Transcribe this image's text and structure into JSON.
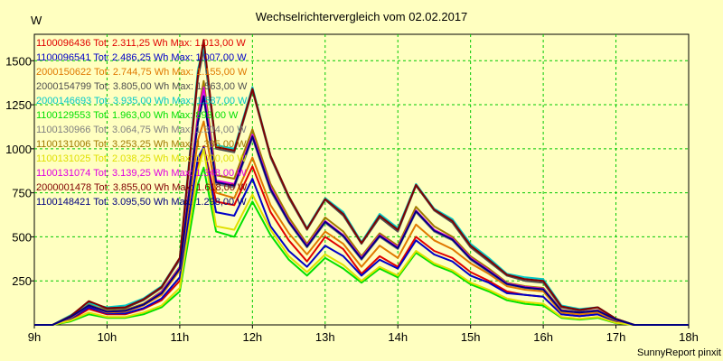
{
  "chart_data": {
    "type": "line",
    "title": "Wechselrichtervergleich vom 02.02.2017",
    "ylabel": "W",
    "footer": "SunnyReport pinxit",
    "x_ticks": [
      "9h",
      "10h",
      "11h",
      "12h",
      "13h",
      "14h",
      "15h",
      "16h",
      "17h",
      "18h"
    ],
    "xlim": [
      9,
      18
    ],
    "y_ticks": [
      "250",
      "500",
      "750",
      "1000",
      "1250",
      "1500"
    ],
    "ylim": [
      0,
      1650
    ],
    "grid": true,
    "legend_position": "top-left",
    "x": [
      9.0,
      9.25,
      9.5,
      9.75,
      10.0,
      10.25,
      10.5,
      10.75,
      11.0,
      11.25,
      11.33,
      11.5,
      11.75,
      12.0,
      12.25,
      12.5,
      12.75,
      13.0,
      13.25,
      13.5,
      13.75,
      14.0,
      14.25,
      14.5,
      14.75,
      15.0,
      15.25,
      15.5,
      15.75,
      16.0,
      16.25,
      16.5,
      16.75,
      17.0,
      17.25,
      17.5,
      17.75,
      18.0
    ],
    "series": [
      {
        "name": "1100096436",
        "legend": "1100096436 Tot: 2.311,25 Wh Max: 1.013,00 W",
        "color": "#E00000",
        "values": [
          0,
          0,
          30,
          90,
          60,
          60,
          90,
          140,
          250,
          900,
          1013,
          700,
          680,
          900,
          640,
          480,
          360,
          500,
          430,
          290,
          390,
          330,
          500,
          420,
          380,
          300,
          250,
          190,
          170,
          160,
          60,
          50,
          60,
          20,
          0,
          0,
          0,
          0
        ]
      },
      {
        "name": "1100096541",
        "legend": "1100096541 Tot: 2.486,25 Wh Max: 1.007,00 W",
        "color": "#0000C8",
        "values": [
          0,
          0,
          35,
          100,
          65,
          65,
          95,
          150,
          270,
          950,
          1007,
          640,
          620,
          830,
          560,
          420,
          330,
          450,
          390,
          280,
          370,
          320,
          480,
          400,
          360,
          280,
          240,
          180,
          170,
          160,
          60,
          50,
          60,
          20,
          0,
          0,
          0,
          0
        ]
      },
      {
        "name": "2000150622",
        "legend": "2000150622 Tot: 2.744,75 Wh Max: 1.155,00 W",
        "color": "#E07800",
        "values": [
          0,
          0,
          40,
          110,
          70,
          75,
          110,
          170,
          310,
          1050,
          1155,
          750,
          720,
          950,
          680,
          520,
          400,
          530,
          460,
          330,
          450,
          380,
          570,
          480,
          430,
          350,
          290,
          220,
          200,
          190,
          70,
          60,
          70,
          25,
          0,
          0,
          0,
          0
        ]
      },
      {
        "name": "2000154799",
        "legend": "2000154799 Tot: 3.805,00 Wh Max: 1.563,00 W",
        "color": "#505050",
        "values": [
          0,
          0,
          50,
          130,
          90,
          95,
          140,
          210,
          370,
          1400,
          1563,
          1000,
          980,
          1330,
          950,
          720,
          540,
          710,
          620,
          460,
          610,
          530,
          790,
          650,
          580,
          440,
          360,
          280,
          250,
          240,
          100,
          80,
          100,
          35,
          0,
          0,
          0,
          0
        ]
      },
      {
        "name": "2000146693",
        "legend": "2000146693 Tot: 3.935,00 Wh Max: 1.587,00 W",
        "color": "#00C8C8",
        "values": [
          0,
          0,
          55,
          120,
          100,
          110,
          150,
          220,
          380,
          1450,
          1587,
          1020,
          1000,
          1350,
          960,
          730,
          550,
          720,
          640,
          470,
          630,
          550,
          800,
          660,
          600,
          460,
          380,
          290,
          270,
          260,
          110,
          90,
          100,
          35,
          0,
          0,
          0,
          0
        ]
      },
      {
        "name": "1100129553",
        "legend": "1100129553 Tot: 1.963,00 Wh Max: 893,00 W",
        "color": "#00E000",
        "values": [
          0,
          0,
          20,
          60,
          40,
          40,
          60,
          100,
          190,
          800,
          893,
          530,
          500,
          700,
          510,
          370,
          280,
          380,
          320,
          240,
          320,
          270,
          410,
          340,
          300,
          230,
          190,
          140,
          120,
          110,
          40,
          30,
          40,
          10,
          0,
          0,
          0,
          0
        ]
      },
      {
        "name": "1100130966",
        "legend": "1100130966 Tot: 3.064,75 Wh Max: 1.304,00 W",
        "color": "#808080",
        "values": [
          0,
          0,
          45,
          110,
          75,
          80,
          115,
          180,
          320,
          1150,
          1304,
          800,
          780,
          1060,
          760,
          580,
          440,
          580,
          500,
          370,
          500,
          430,
          640,
          530,
          480,
          370,
          300,
          230,
          210,
          200,
          80,
          70,
          80,
          30,
          0,
          0,
          0,
          0
        ]
      },
      {
        "name": "1100131006",
        "legend": "1100131006 Tot: 3.253,25 Wh Max: 1.385,00 W",
        "color": "#A07800",
        "values": [
          0,
          0,
          45,
          115,
          80,
          85,
          120,
          190,
          330,
          1200,
          1385,
          850,
          830,
          1110,
          800,
          610,
          460,
          610,
          530,
          390,
          520,
          450,
          670,
          560,
          500,
          390,
          320,
          240,
          220,
          210,
          85,
          70,
          85,
          30,
          0,
          0,
          0,
          0
        ]
      },
      {
        "name": "1100131025",
        "legend": "1100131025 Tot: 2.038,25 Wh Max: 1.000,00 W",
        "color": "#E0E000",
        "values": [
          0,
          0,
          25,
          70,
          45,
          45,
          70,
          110,
          210,
          880,
          1000,
          560,
          540,
          740,
          540,
          390,
          300,
          400,
          340,
          250,
          330,
          280,
          420,
          350,
          310,
          240,
          200,
          150,
          130,
          120,
          45,
          35,
          45,
          12,
          0,
          0,
          0,
          0
        ]
      },
      {
        "name": "1100131074",
        "legend": "1100131074 Tot: 3.139,25 Wh Max: 1.348,00 W",
        "color": "#E000E0",
        "values": [
          0,
          0,
          45,
          110,
          75,
          80,
          115,
          185,
          325,
          1180,
          1348,
          820,
          800,
          1080,
          780,
          590,
          450,
          590,
          510,
          380,
          510,
          440,
          650,
          540,
          490,
          380,
          310,
          235,
          215,
          205,
          82,
          70,
          82,
          30,
          0,
          0,
          0,
          0
        ]
      },
      {
        "name": "2000001478",
        "legend": "2000001478 Tot: 3.855,00 Wh Max: 1.618,00 W",
        "color": "#800000",
        "values": [
          0,
          0,
          50,
          135,
          95,
          100,
          145,
          215,
          380,
          1420,
          1618,
          1010,
          990,
          1340,
          960,
          730,
          545,
          715,
          630,
          465,
          620,
          540,
          795,
          655,
          590,
          450,
          370,
          285,
          260,
          250,
          105,
          85,
          100,
          35,
          0,
          0,
          0,
          0
        ]
      },
      {
        "name": "1100148421",
        "legend": "1100148421 Tot: 3.095,50 Wh Max: 1.298,00 W",
        "color": "#000080",
        "values": [
          0,
          0,
          45,
          110,
          75,
          80,
          115,
          180,
          320,
          1150,
          1298,
          810,
          790,
          1070,
          770,
          585,
          445,
          585,
          505,
          375,
          505,
          435,
          645,
          535,
          485,
          375,
          305,
          232,
          212,
          202,
          80,
          70,
          80,
          30,
          0,
          0,
          0,
          0
        ]
      }
    ]
  }
}
